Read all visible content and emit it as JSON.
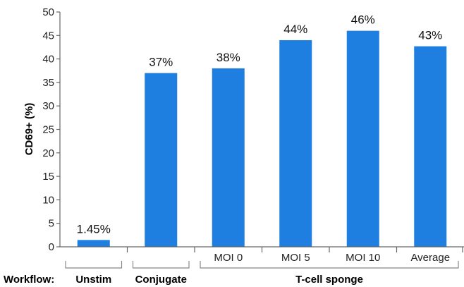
{
  "chart_data": {
    "type": "bar",
    "title": "",
    "xlabel": "",
    "ylabel": "CD69+ (%)",
    "ylim": [
      0,
      50
    ],
    "yticks": [
      0,
      5,
      10,
      15,
      20,
      25,
      30,
      35,
      40,
      45,
      50
    ],
    "categories": [
      "",
      "",
      "MOI 0",
      "MOI 5",
      "MOI 10",
      "Average"
    ],
    "values": [
      1.45,
      37,
      38,
      44,
      46,
      42.7
    ],
    "data_labels": [
      "1.45%",
      "37%",
      "38%",
      "44%",
      "46%",
      "43%"
    ],
    "bar_color": "#1f7fe0",
    "group_row_label": "Workflow:",
    "groups": [
      {
        "label": "Unstim",
        "start": 0,
        "end": 0
      },
      {
        "label": "Conjugate",
        "start": 1,
        "end": 1
      },
      {
        "label": "T-cell sponge",
        "start": 2,
        "end": 5
      }
    ]
  }
}
